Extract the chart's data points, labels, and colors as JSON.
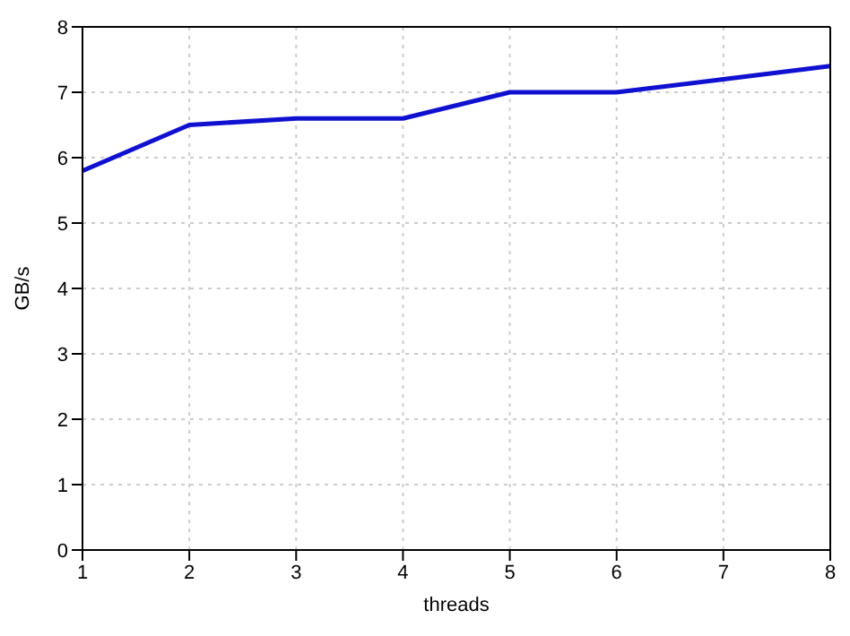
{
  "chart_data": {
    "type": "line",
    "xlabel": "threads",
    "ylabel": "GB/s",
    "x": [
      1,
      2,
      3,
      4,
      5,
      6,
      7,
      8
    ],
    "series": [
      {
        "color": "#1010d0",
        "values": [
          5.8,
          6.5,
          6.6,
          6.6,
          7.0,
          7.0,
          7.2,
          7.4
        ]
      }
    ],
    "xlim": [
      1,
      8
    ],
    "xticks": [
      1,
      2,
      3,
      4,
      5,
      6,
      7,
      8
    ],
    "ylim": [
      0,
      8
    ],
    "yticks": [
      0,
      1,
      2,
      3,
      4,
      5,
      6,
      7,
      8
    ],
    "grid": true,
    "marker": "none",
    "line_style": "solid",
    "legend": false
  }
}
